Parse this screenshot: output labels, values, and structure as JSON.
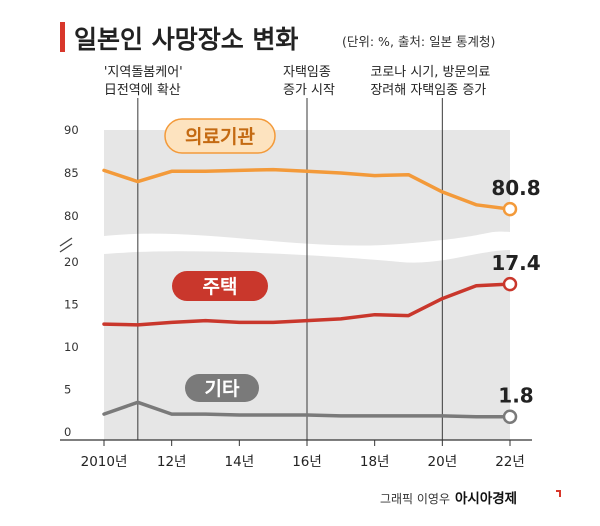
{
  "header": {
    "title": "일본인 사망장소 변화",
    "source_note": "(단위: %, 출처: 일본 통계청)"
  },
  "annotations": [
    {
      "x": 2011,
      "lines": [
        "'지역돌봄케어'",
        "日전역에 확산"
      ]
    },
    {
      "x": 2016,
      "lines": [
        "자택임종",
        "증가 시작"
      ]
    },
    {
      "x": 2020,
      "lines": [
        "코로나 시기, 방문의료",
        "장려해 자택임종 증가"
      ]
    }
  ],
  "footer": {
    "credit": "그래픽 이영우",
    "brand": "아시아경제"
  },
  "colors": {
    "hospital": "#f39a3a",
    "hospital_label_bg": "#fde3bf",
    "home": "#c9372c",
    "other": "#7a7a7a",
    "band": "#e6e6e6",
    "accent": "#d8372b"
  },
  "chart_data": {
    "type": "line",
    "x": [
      2010,
      2011,
      2012,
      2013,
      2014,
      2015,
      2016,
      2017,
      2018,
      2019,
      2020,
      2021,
      2022
    ],
    "x_tick_labels": [
      {
        "x": 2010,
        "label": "2010년"
      },
      {
        "x": 2012,
        "label": "12년"
      },
      {
        "x": 2014,
        "label": "14년"
      },
      {
        "x": 2016,
        "label": "16년"
      },
      {
        "x": 2018,
        "label": "18년"
      },
      {
        "x": 2020,
        "label": "20년"
      },
      {
        "x": 2022,
        "label": "22년"
      }
    ],
    "y_axis": {
      "broken": true,
      "lower_segment": {
        "range": [
          0,
          20
        ],
        "ticks": [
          0,
          5,
          10,
          15,
          20
        ]
      },
      "upper_segment": {
        "range": [
          80,
          90
        ],
        "ticks": [
          80,
          85,
          90
        ]
      }
    },
    "series": [
      {
        "key": "hospital",
        "name": "의료기관",
        "segment": "upper",
        "values": [
          85.3,
          84.0,
          85.2,
          85.2,
          85.3,
          85.4,
          85.2,
          85.0,
          84.7,
          84.8,
          82.8,
          81.3,
          80.8
        ],
        "end_label": "80.8"
      },
      {
        "key": "home",
        "name": "주택",
        "segment": "lower",
        "values": [
          12.7,
          12.6,
          12.9,
          13.1,
          12.9,
          12.9,
          13.1,
          13.3,
          13.8,
          13.7,
          15.7,
          17.2,
          17.4
        ],
        "end_label": "17.4"
      },
      {
        "key": "other",
        "name": "기타",
        "segment": "lower",
        "values": [
          2.1,
          3.5,
          2.1,
          2.1,
          2.0,
          2.0,
          2.0,
          1.9,
          1.9,
          1.9,
          1.9,
          1.8,
          1.8
        ],
        "end_label": "1.8"
      }
    ]
  }
}
